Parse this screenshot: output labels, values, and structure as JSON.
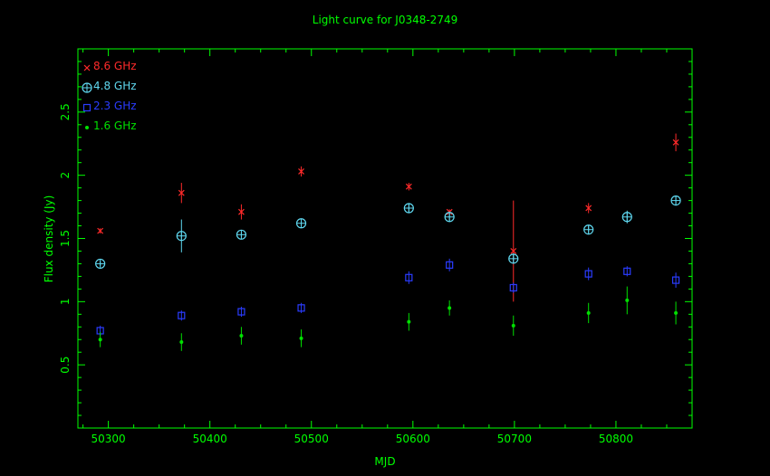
{
  "chart_data": {
    "type": "scatter",
    "title": "Light curve for J0348-2749",
    "xlabel": "MJD",
    "ylabel": "Flux density (Jy)",
    "xlim": [
      50270,
      50875
    ],
    "ylim": [
      0,
      3.0
    ],
    "xticks": [
      50300,
      50400,
      50500,
      50600,
      50700,
      50800
    ],
    "yticks": [
      0.5,
      1,
      1.5,
      2,
      2.5
    ],
    "legend_position": "top-left",
    "colors": {
      "background": "#000000",
      "axes": "#00ff00",
      "title": "#00ff00",
      "8.6 GHz": "#ff2a2a",
      "4.8 GHz": "#5fd8f0",
      "2.3 GHz": "#2a3cff",
      "1.6 GHz": "#00e000"
    },
    "series": [
      {
        "name": "8.6 GHz",
        "marker": "cross",
        "points": [
          {
            "x": 50292,
            "y": 1.56,
            "err": 0.02
          },
          {
            "x": 50372,
            "y": 1.86,
            "err": 0.08
          },
          {
            "x": 50431,
            "y": 1.71,
            "err": 0.06
          },
          {
            "x": 50490,
            "y": 2.03,
            "err": 0.04
          },
          {
            "x": 50596,
            "y": 1.91,
            "err": 0.03
          },
          {
            "x": 50636,
            "y": 1.71,
            "err": 0.02
          },
          {
            "x": 50699,
            "y": 1.4,
            "err": 0.4
          },
          {
            "x": 50773,
            "y": 1.74,
            "err": 0.04
          },
          {
            "x": 50859,
            "y": 2.26,
            "err": 0.07
          }
        ]
      },
      {
        "name": "4.8 GHz",
        "marker": "circle-plus",
        "points": [
          {
            "x": 50292,
            "y": 1.3,
            "err": 0.02
          },
          {
            "x": 50372,
            "y": 1.52,
            "err": 0.13
          },
          {
            "x": 50431,
            "y": 1.53,
            "err": 0.02
          },
          {
            "x": 50490,
            "y": 1.62,
            "err": 0.02
          },
          {
            "x": 50596,
            "y": 1.74,
            "err": 0.04
          },
          {
            "x": 50636,
            "y": 1.67,
            "err": 0.04
          },
          {
            "x": 50699,
            "y": 1.34,
            "err": 0.04
          },
          {
            "x": 50773,
            "y": 1.57,
            "err": 0.03
          },
          {
            "x": 50811,
            "y": 1.67,
            "err": 0.05
          },
          {
            "x": 50859,
            "y": 1.8,
            "err": 0.04
          }
        ]
      },
      {
        "name": "2.3 GHz",
        "marker": "square",
        "points": [
          {
            "x": 50292,
            "y": 0.77,
            "err": 0.04
          },
          {
            "x": 50372,
            "y": 0.89,
            "err": 0.04
          },
          {
            "x": 50431,
            "y": 0.92,
            "err": 0.04
          },
          {
            "x": 50490,
            "y": 0.95,
            "err": 0.04
          },
          {
            "x": 50596,
            "y": 1.19,
            "err": 0.05
          },
          {
            "x": 50636,
            "y": 1.29,
            "err": 0.05
          },
          {
            "x": 50699,
            "y": 1.11,
            "err": 0.04
          },
          {
            "x": 50773,
            "y": 1.22,
            "err": 0.05
          },
          {
            "x": 50811,
            "y": 1.24,
            "err": 0.04
          },
          {
            "x": 50859,
            "y": 1.17,
            "err": 0.06
          }
        ]
      },
      {
        "name": "1.6 GHz",
        "marker": "dot",
        "points": [
          {
            "x": 50292,
            "y": 0.7,
            "err": 0.06
          },
          {
            "x": 50372,
            "y": 0.68,
            "err": 0.07
          },
          {
            "x": 50431,
            "y": 0.73,
            "err": 0.07
          },
          {
            "x": 50490,
            "y": 0.71,
            "err": 0.07
          },
          {
            "x": 50596,
            "y": 0.84,
            "err": 0.07
          },
          {
            "x": 50636,
            "y": 0.95,
            "err": 0.06
          },
          {
            "x": 50699,
            "y": 0.81,
            "err": 0.08
          },
          {
            "x": 50773,
            "y": 0.91,
            "err": 0.08
          },
          {
            "x": 50811,
            "y": 1.01,
            "err": 0.11
          },
          {
            "x": 50859,
            "y": 0.91,
            "err": 0.09
          }
        ]
      }
    ]
  }
}
